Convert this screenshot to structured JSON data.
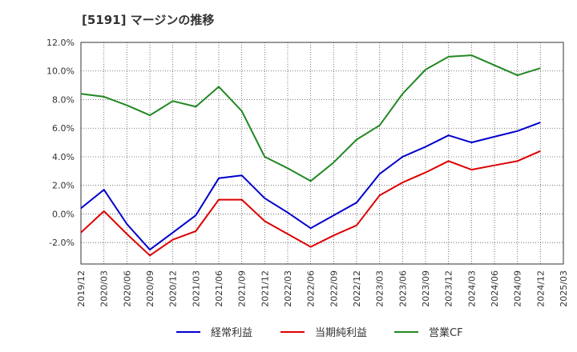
{
  "title": "[5191]  マージンの推移",
  "chart_data": {
    "type": "line",
    "title": "[5191]  マージンの推移",
    "xlabel": "",
    "ylabel": "",
    "ylim": [
      -3.5,
      12.0
    ],
    "yticks": [
      -2.0,
      0.0,
      2.0,
      4.0,
      6.0,
      8.0,
      10.0,
      12.0
    ],
    "ytick_labels": [
      "-2.0%",
      "0.0%",
      "2.0%",
      "4.0%",
      "6.0%",
      "8.0%",
      "10.0%",
      "12.0%"
    ],
    "categories": [
      "2019/12",
      "2020/03",
      "2020/06",
      "2020/09",
      "2020/12",
      "2021/03",
      "2021/06",
      "2021/09",
      "2021/12",
      "2022/03",
      "2022/06",
      "2022/09",
      "2022/12",
      "2023/03",
      "2023/06",
      "2023/09",
      "2023/12",
      "2024/03",
      "2024/06",
      "2024/09",
      "2024/12",
      "2025/03"
    ],
    "grid": true,
    "legend_position": "bottom",
    "series": [
      {
        "name": "経常利益",
        "color": "#0000cc",
        "values": [
          0.4,
          1.7,
          -0.7,
          -2.5,
          -1.3,
          -0.1,
          2.5,
          2.7,
          1.1,
          0.1,
          -1.0,
          -0.1,
          0.8,
          2.8,
          4.0,
          4.7,
          5.5,
          5.0,
          5.4,
          5.8,
          6.4,
          null
        ]
      },
      {
        "name": "当期純利益",
        "color": "#dd0000",
        "values": [
          -1.3,
          0.2,
          -1.4,
          -2.9,
          -1.8,
          -1.2,
          1.0,
          1.0,
          -0.5,
          -1.4,
          -2.3,
          -1.5,
          -0.8,
          1.3,
          2.2,
          2.9,
          3.7,
          3.1,
          3.4,
          3.7,
          4.4,
          null
        ]
      },
      {
        "name": "営業CF",
        "color": "#228822",
        "values": [
          8.4,
          8.2,
          7.6,
          6.9,
          7.9,
          7.5,
          8.9,
          7.2,
          4.0,
          3.2,
          2.3,
          3.6,
          5.2,
          6.2,
          8.4,
          10.1,
          11.0,
          11.1,
          10.4,
          9.7,
          10.2,
          null
        ]
      }
    ]
  }
}
